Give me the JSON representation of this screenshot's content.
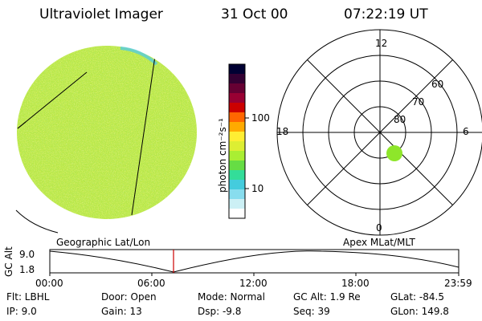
{
  "header": {
    "instrument": "Ultraviolet Imager",
    "date": "31 Oct 00",
    "time": "07:22:19 UT"
  },
  "colorbar": {
    "unit_label": "photon cm⁻²s⁻¹",
    "ticks": [
      "100",
      "10"
    ],
    "colors": [
      "#000033",
      "#330033",
      "#660033",
      "#990033",
      "#cc0000",
      "#ff6600",
      "#ffaa00",
      "#ffee33",
      "#ddee33",
      "#aaee33",
      "#66dd44",
      "#33dd99",
      "#44ccdd",
      "#88ddee",
      "#ccf0f5",
      "#ffffff"
    ]
  },
  "polar_plot": {
    "mlt_labels": {
      "top": "12",
      "left": "18",
      "right": "6",
      "bottom": "0"
    },
    "lat_labels": [
      "60",
      "70",
      "80"
    ]
  },
  "plot_labels": {
    "left": "Geographic Lat/Lon",
    "right": "Apex MLat/MLT"
  },
  "altitude_plot": {
    "ylabel": "GC Alt",
    "ytick_top": "9.0",
    "ytick_bottom": "1.8",
    "xticks": [
      "00:00",
      "06:00",
      "12:00",
      "18:00",
      "23:59"
    ],
    "marker_color": "#cc0000"
  },
  "info": {
    "flt": "Flt: LBHL",
    "door": "Door: Open",
    "mode": "Mode: Normal",
    "gcalt": "GC Alt: 1.9 Re",
    "glat": "GLat: -84.5",
    "ip": "IP:  9.0",
    "gain": "Gain: 13",
    "dsp": "Dsp:    -9.8",
    "seq": "Seq: 39",
    "glon": "GLon: 149.8"
  },
  "colors": {
    "disk_base": "#b8e84a",
    "auroral_spot": "#8ee62a"
  }
}
